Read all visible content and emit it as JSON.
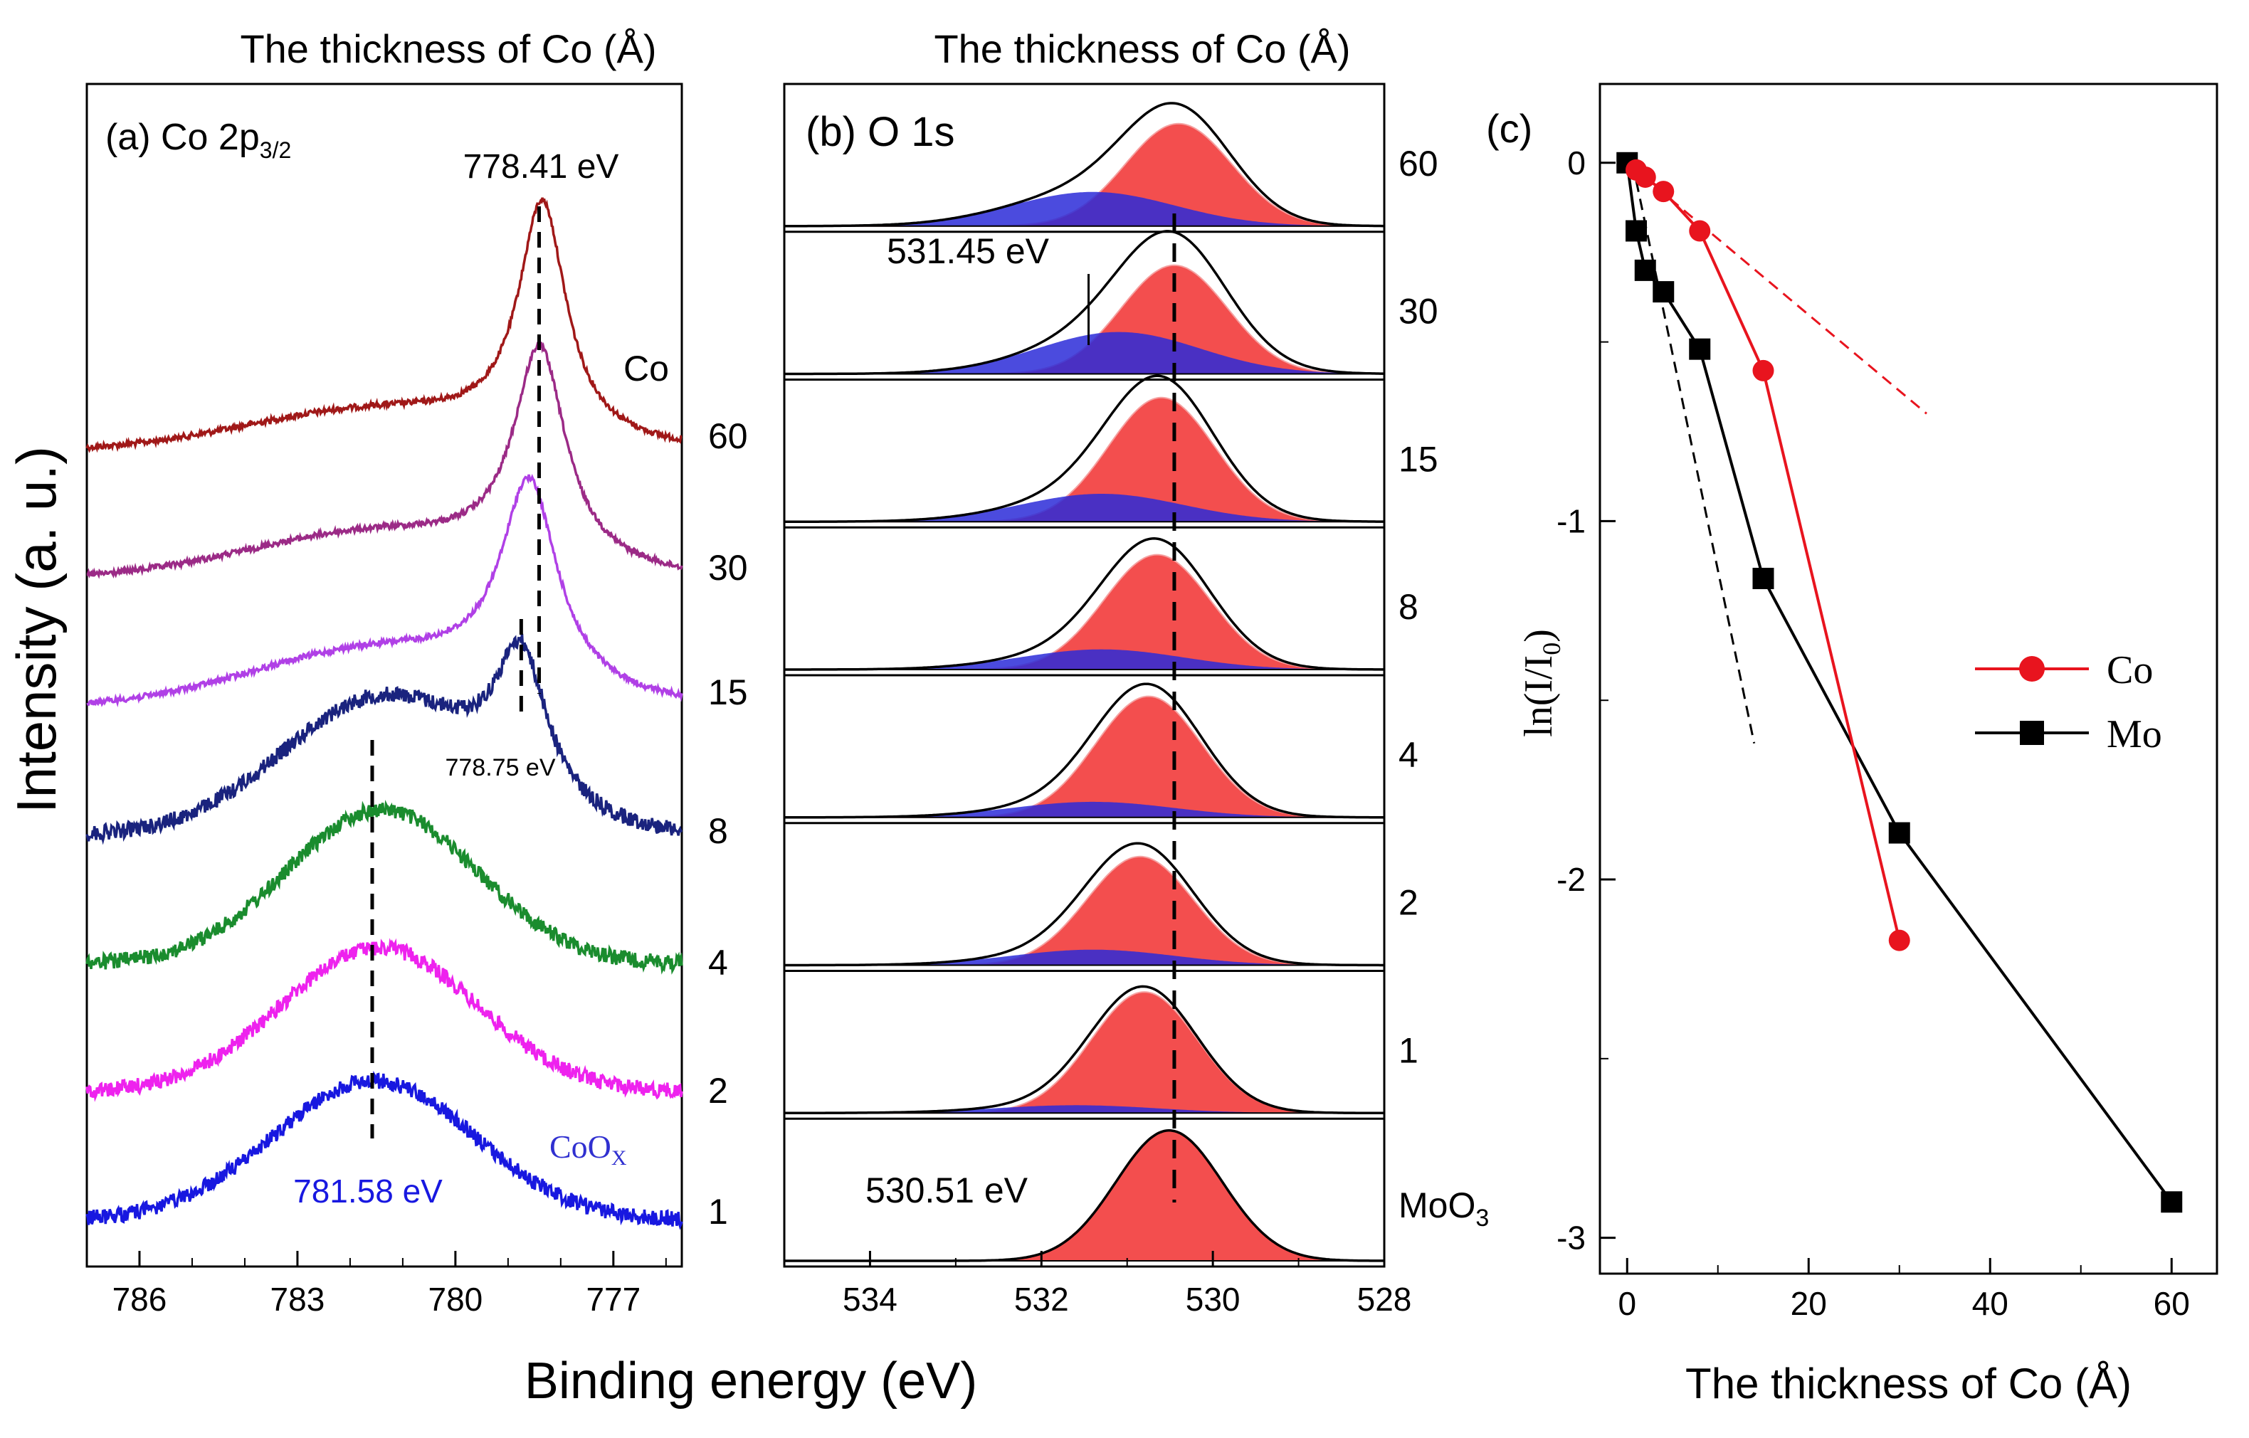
{
  "figure_labels": {
    "top_header_a": "The thickness of Co (Å)",
    "top_header_b": "The thickness of Co (Å)",
    "y_label_left": "Intensity (a. u.)",
    "x_label_bottom": "Binding energy (eV)"
  },
  "chart_data": [
    {
      "type": "line",
      "panel": "a",
      "title_main": "(a) Co 2p",
      "title_sub": "3/2",
      "xlabel": "Binding energy (eV)",
      "ylabel": "Intensity (a. u.)",
      "xlim": [
        787,
        775.7
      ],
      "x_ticks": [
        786,
        783,
        780,
        777
      ],
      "x_tick_labels": [
        "786",
        "783",
        "780",
        "777"
      ],
      "series": [
        {
          "name": "Co",
          "label": "Co",
          "color": "#a01818",
          "offset": 6,
          "peaks": [
            {
              "center": 778.35,
              "amp": 2.35,
              "width": 0.55,
              "shape": "lorentz"
            },
            {
              "center": 781.5,
              "amp": 0.4,
              "width": 2.5,
              "shape": "gauss"
            }
          ]
        },
        {
          "name": "60",
          "label": "60",
          "color": "#9b2a86",
          "offset": 5,
          "peaks": [
            {
              "center": 778.4,
              "amp": 2.15,
              "width": 0.6,
              "shape": "lorentz"
            },
            {
              "center": 781.5,
              "amp": 0.45,
              "width": 2.5,
              "shape": "gauss"
            }
          ]
        },
        {
          "name": "30",
          "label": "30",
          "color": "#b040e6",
          "offset": 4,
          "peaks": [
            {
              "center": 778.6,
              "amp": 2.05,
              "width": 0.65,
              "shape": "lorentz"
            },
            {
              "center": 781.5,
              "amp": 0.55,
              "width": 2.4,
              "shape": "gauss"
            }
          ]
        },
        {
          "name": "15",
          "label": "15",
          "color": "#1a237e",
          "offset": 3,
          "peaks": [
            {
              "center": 778.75,
              "amp": 1.45,
              "width": 0.6,
              "shape": "lorentz"
            },
            {
              "center": 781.4,
              "amp": 1.35,
              "width": 1.9,
              "shape": "gauss"
            }
          ]
        },
        {
          "name": "8",
          "label": "8",
          "color": "#1a8c2e",
          "offset": 2,
          "peaks": [
            {
              "center": 781.4,
              "amp": 1.55,
              "width": 1.8,
              "shape": "gauss"
            }
          ]
        },
        {
          "name": "4",
          "label": "4",
          "color": "#ee22ee",
          "offset": 1,
          "peaks": [
            {
              "center": 781.45,
              "amp": 1.45,
              "width": 1.85,
              "shape": "gauss"
            }
          ]
        },
        {
          "name": "2",
          "label": "2",
          "color": "#1818e0",
          "offset": 0,
          "peaks": [
            {
              "center": 781.55,
              "amp": 1.4,
              "width": 1.9,
              "shape": "gauss"
            }
          ]
        }
      ],
      "thickness_labels": [
        "60",
        "30",
        "15",
        "8",
        "4",
        "2",
        "1"
      ],
      "annotations": {
        "peak_778_41": "778.41 eV",
        "peak_778_75": "778.75 eV",
        "peak_781_58": "781.58 eV",
        "coox": "CoO",
        "coox_sub": "X"
      },
      "marker_energies": {
        "metal_dash": 778.41,
        "shoulder_dash": 778.75,
        "oxide_dash": 781.58
      }
    },
    {
      "type": "line",
      "panel": "b",
      "title": "(b) O 1s",
      "xlabel": "Binding energy (eV)",
      "xlim": [
        535,
        528
      ],
      "x_ticks": [
        534,
        532,
        530,
        528
      ],
      "x_tick_labels": [
        "534",
        "532",
        "530",
        "528"
      ],
      "component_colors": {
        "lattice_oxygen": "#f23b3b",
        "defect_oxygen": "#2b2bd8",
        "envelope": "#000000"
      },
      "reference_energies": {
        "lattice_dash": 530.45,
        "defect_marker": 531.45
      },
      "annotations": {
        "defect": "531.45 eV",
        "lattice": "530.51 eV"
      },
      "spectra": [
        {
          "label": "60",
          "red_center": 530.4,
          "red_amp": 0.66,
          "blue_center": 531.4,
          "blue_amp": 0.22
        },
        {
          "label": "30",
          "red_center": 530.45,
          "red_amp": 0.7,
          "blue_center": 531.1,
          "blue_amp": 0.27
        },
        {
          "label": "15",
          "red_center": 530.6,
          "red_amp": 0.8,
          "blue_center": 531.3,
          "blue_amp": 0.18
        },
        {
          "label": "8",
          "red_center": 530.65,
          "red_amp": 0.74,
          "blue_center": 531.3,
          "blue_amp": 0.13
        },
        {
          "label": "4",
          "red_center": 530.75,
          "red_amp": 0.78,
          "blue_center": 531.4,
          "blue_amp": 0.1
        },
        {
          "label": "2",
          "red_center": 530.85,
          "red_amp": 0.7,
          "blue_center": 531.4,
          "blue_amp": 0.1
        },
        {
          "label": "1",
          "red_center": 530.8,
          "red_amp": 0.78,
          "blue_center": 531.6,
          "blue_amp": 0.05
        },
        {
          "label": "MoO",
          "label_sub": "3",
          "red_center": 530.51,
          "red_amp": 0.84,
          "blue_center": 531.6,
          "blue_amp": 0.0
        }
      ]
    },
    {
      "type": "line",
      "panel": "c",
      "title": "(c)",
      "xlabel": "The thickness of Co (Å)",
      "ylabel": "ln(I/I",
      "ylabel_sub": "0",
      "ylabel_end": ")",
      "xlim": [
        -3,
        65
      ],
      "ylim": [
        -3.1,
        0.22
      ],
      "x_ticks": [
        0,
        20,
        40,
        60
      ],
      "x_tick_labels": [
        "0",
        "20",
        "40",
        "60"
      ],
      "y_ticks": [
        0,
        -1,
        -2,
        -3
      ],
      "y_tick_labels": [
        "0",
        "-1",
        "-2",
        "-3"
      ],
      "legend_position": "right-middle",
      "series": [
        {
          "name": "Co",
          "marker": "circle",
          "color": "#e8141e",
          "x": [
            1,
            2,
            4,
            8,
            15,
            30
          ],
          "y": [
            -0.02,
            -0.04,
            -0.08,
            -0.19,
            -0.58,
            -2.17
          ]
        },
        {
          "name": "Mo",
          "marker": "square",
          "color": "#000000",
          "x": [
            0,
            1,
            2,
            4,
            8,
            15,
            30,
            60
          ],
          "y": [
            0,
            -0.19,
            -0.3,
            -0.36,
            -0.52,
            -1.16,
            -1.87,
            -2.9
          ]
        }
      ],
      "guides": [
        {
          "name": "Co slope",
          "color": "#e8141e",
          "dashed": true,
          "x": [
            0,
            33
          ],
          "y": [
            0,
            -0.7
          ]
        },
        {
          "name": "Mo slope",
          "color": "#000000",
          "dashed": true,
          "x": [
            1,
            14
          ],
          "y": [
            -0.05,
            -1.62
          ]
        }
      ]
    }
  ]
}
